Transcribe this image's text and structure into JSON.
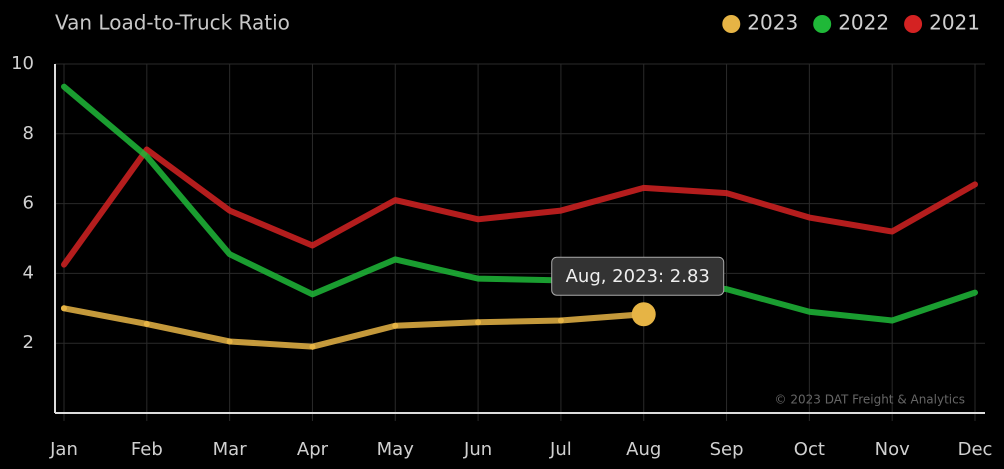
{
  "chart_data": {
    "type": "line",
    "title": "Van Load-to-Truck Ratio",
    "categories": [
      "Jan",
      "Feb",
      "Mar",
      "Apr",
      "May",
      "Jun",
      "Jul",
      "Aug",
      "Sep",
      "Oct",
      "Nov",
      "Dec"
    ],
    "series": [
      {
        "name": "2023",
        "color": "#e6b445",
        "values": [
          3.0,
          2.55,
          2.05,
          1.9,
          2.5,
          2.6,
          2.65,
          2.83,
          null,
          null,
          null,
          null
        ]
      },
      {
        "name": "2022",
        "color": "#1fb838",
        "values": [
          9.35,
          7.35,
          4.55,
          3.4,
          4.4,
          3.85,
          3.8,
          3.75,
          3.55,
          2.9,
          2.65,
          3.45
        ]
      },
      {
        "name": "2021",
        "color": "#d42222",
        "values": [
          4.25,
          7.55,
          5.8,
          4.8,
          6.1,
          5.55,
          5.8,
          6.45,
          6.3,
          5.6,
          5.2,
          6.55
        ]
      }
    ],
    "ylim": [
      0,
      10
    ],
    "yticks": [
      2,
      4,
      6,
      8,
      10
    ],
    "grid": true,
    "tooltip": "Aug, 2023: 2.83",
    "credit": "© 2023 DAT Freight & Analytics"
  }
}
